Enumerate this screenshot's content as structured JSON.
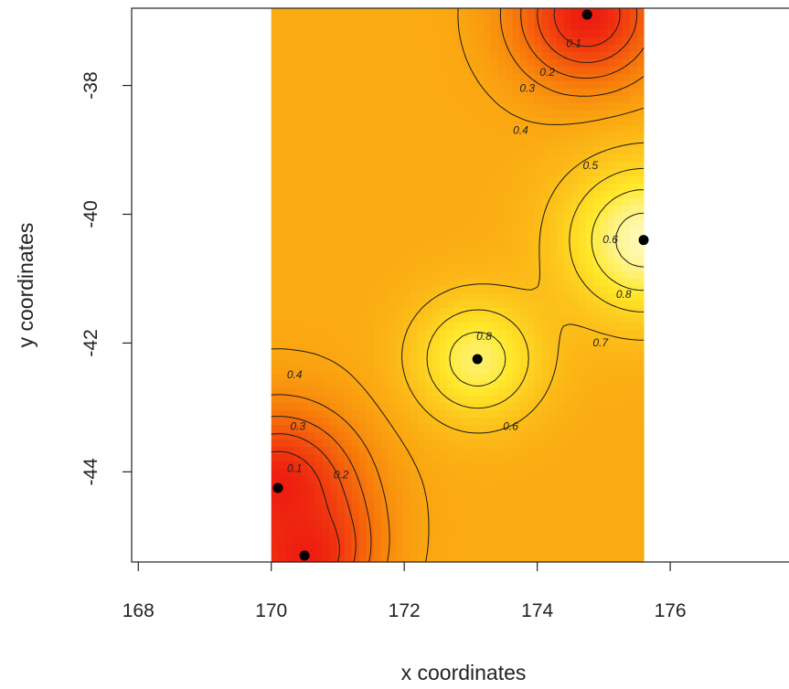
{
  "chart_data": {
    "type": "heatmap",
    "title": "",
    "xlabel": "x coordinates",
    "ylabel": "y coordinates",
    "xlim": [
      167.9,
      177.8
    ],
    "ylim": [
      -45.4,
      -36.8
    ],
    "x_ticks": [
      168,
      170,
      172,
      174,
      176
    ],
    "y_ticks": [
      -38,
      -40,
      -42,
      -44
    ],
    "grid": false,
    "field_extent": {
      "x": [
        170.0,
        175.6
      ],
      "y": [
        -45.4,
        -36.8
      ]
    },
    "color_scale": {
      "low": "#ee1c10",
      "mid_low": "#f77d0b",
      "mid": "#fbab12",
      "mid_high": "#ffe82a",
      "high": "#fffde0"
    },
    "data_points": [
      {
        "x": 174.75,
        "y": -36.9
      },
      {
        "x": 175.6,
        "y": -40.4
      },
      {
        "x": 173.1,
        "y": -42.25
      },
      {
        "x": 170.1,
        "y": -44.25
      },
      {
        "x": 170.5,
        "y": -45.3
      }
    ],
    "field_peaks": [
      {
        "x": 174.75,
        "y": -36.9,
        "value": 0.0,
        "radius": 0.9
      },
      {
        "x": 175.6,
        "y": -40.4,
        "value": 0.95,
        "radius": 1.0
      },
      {
        "x": 173.1,
        "y": -42.25,
        "value": 0.86,
        "radius": 0.8
      },
      {
        "x": 170.1,
        "y": -44.25,
        "value": 0.0,
        "radius": 1.0
      },
      {
        "x": 170.5,
        "y": -45.3,
        "value": 0.0,
        "radius": 0.8
      }
    ],
    "contour_levels": [
      0.1,
      0.2,
      0.3,
      0.4,
      0.5,
      0.6,
      0.7,
      0.8,
      0.9
    ],
    "contour_labels": [
      {
        "text": "0.1",
        "x": 174.55,
        "y": -37.4
      },
      {
        "text": "0.2",
        "x": 174.15,
        "y": -37.85
      },
      {
        "text": "0.3",
        "x": 173.85,
        "y": -38.1
      },
      {
        "text": "0.4",
        "x": 173.75,
        "y": -38.75
      },
      {
        "text": "0.5",
        "x": 174.8,
        "y": -39.3
      },
      {
        "text": "0.6",
        "x": 175.1,
        "y": -40.45
      },
      {
        "text": "0.8",
        "x": 175.3,
        "y": -41.3
      },
      {
        "text": "0.8",
        "x": 173.2,
        "y": -41.95
      },
      {
        "text": "0.7",
        "x": 174.95,
        "y": -42.05
      },
      {
        "text": "0.6",
        "x": 173.6,
        "y": -43.35
      },
      {
        "text": "0.4",
        "x": 170.35,
        "y": -42.55
      },
      {
        "text": "0.3",
        "x": 170.4,
        "y": -43.35
      },
      {
        "text": "0.1",
        "x": 170.35,
        "y": -44.0
      },
      {
        "text": "0.2",
        "x": 171.05,
        "y": -44.1
      }
    ]
  }
}
